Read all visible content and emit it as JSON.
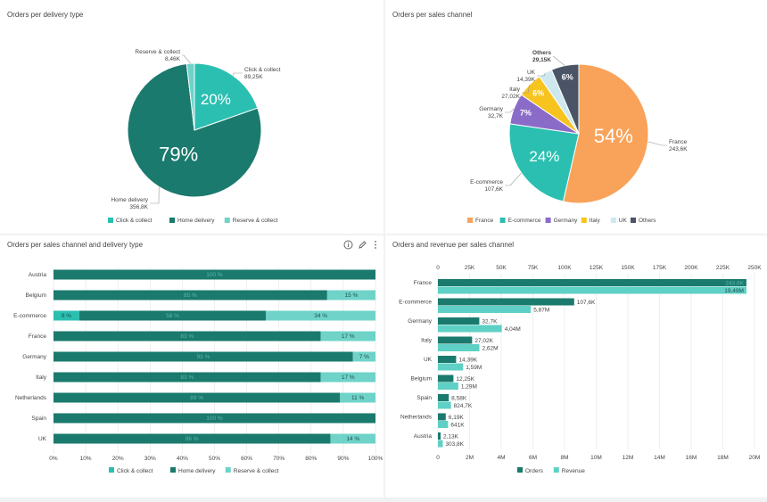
{
  "colors": {
    "home": "#1a7a6d",
    "click": "#2bbfb1",
    "reserve": "#6fd3c9",
    "orders": "#1a7a6d",
    "revenue": "#5fd0c5",
    "france": "#f9a25a",
    "ecommerce": "#2bbfb1",
    "germany": "#8a6cc8",
    "italy": "#f7c31f",
    "uk": "#cde8ee",
    "others": "#4a5466"
  },
  "toolbar": {
    "info_icon": "info-icon",
    "edit_icon": "pencil-icon",
    "more_icon": "more-vertical-icon"
  },
  "chart_data": [
    {
      "id": "delivery",
      "type": "pie",
      "title": "Orders per delivery type",
      "labels": [
        "Click & collect",
        "Home delivery",
        "Reserve & collect"
      ],
      "values": [
        89.25,
        356.8,
        8.46
      ],
      "value_labels": [
        "89,25K",
        "356,8K",
        "8,46K"
      ],
      "percent_labels": [
        "20%",
        "79%",
        ""
      ],
      "colors": [
        "#2bbfb1",
        "#1a7a6d",
        "#6fd3c9"
      ],
      "legend": "bottom"
    },
    {
      "id": "channel",
      "type": "pie",
      "title": "Orders per sales channel",
      "labels": [
        "France",
        "E-commerce",
        "Germany",
        "Italy",
        "UK",
        "Others"
      ],
      "values": [
        243.6,
        107.6,
        32.7,
        27.02,
        14.39,
        29.15
      ],
      "value_labels": [
        "243,6K",
        "107,6K",
        "32,7K",
        "27,02K",
        "14,39K",
        "29,15K"
      ],
      "percent_labels": [
        "54%",
        "24%",
        "7%",
        "6%",
        "",
        "6%"
      ],
      "colors": [
        "#f9a25a",
        "#2bbfb1",
        "#8a6cc8",
        "#f7c31f",
        "#cde8ee",
        "#4a5466"
      ],
      "legend": "bottom"
    },
    {
      "id": "stacked",
      "type": "bar",
      "orientation": "horizontal",
      "stacked": "percent",
      "title": "Orders per sales channel and delivery type",
      "categories": [
        "Austria",
        "Belgium",
        "E-commerce",
        "France",
        "Germany",
        "Italy",
        "Netherlands",
        "Spain",
        "UK"
      ],
      "series": [
        {
          "name": "Click & collect",
          "values": [
            0,
            0,
            8,
            0,
            0,
            0,
            0,
            0,
            0
          ],
          "labels": [
            "",
            "",
            "8 %",
            "",
            "",
            "",
            "",
            "",
            ""
          ]
        },
        {
          "name": "Home delivery",
          "values": [
            100,
            85,
            58,
            83,
            93,
            83,
            89,
            100,
            86
          ],
          "labels": [
            "100 %",
            "85 %",
            "58 %",
            "83 %",
            "93 %",
            "83 %",
            "89 %",
            "100 %",
            "86 %"
          ]
        },
        {
          "name": "Reserve & collect",
          "values": [
            0,
            15,
            34,
            17,
            7,
            17,
            11,
            0,
            14
          ],
          "labels": [
            "",
            "15 %",
            "34 %",
            "17 %",
            "7 %",
            "17 %",
            "11 %",
            "",
            "14 %"
          ]
        }
      ],
      "xticks": [
        "0%",
        "10%",
        "20%",
        "30%",
        "40%",
        "50%",
        "60%",
        "70%",
        "80%",
        "90%",
        "100%"
      ],
      "legend": "bottom"
    },
    {
      "id": "orev",
      "type": "bar",
      "orientation": "horizontal",
      "title": "Orders and revenue per sales channel",
      "categories": [
        "France",
        "E-commerce",
        "Germany",
        "Italy",
        "UK",
        "Belgium",
        "Spain",
        "Netherlands",
        "Austria"
      ],
      "series": [
        {
          "name": "Orders",
          "values": [
            243.6,
            107.6,
            32.7,
            27.02,
            14.39,
            12.25,
            8.58,
            6.19,
            2.13
          ],
          "labels": [
            "243,6K",
            "107,6K",
            "32,7K",
            "27,02K",
            "14,39K",
            "12,25K",
            "8,58K",
            "6,19K",
            "2,13K"
          ]
        },
        {
          "name": "Revenue",
          "values": [
            19.49,
            5.87,
            4.04,
            2.62,
            1.59,
            1.29,
            0.8247,
            0.641,
            0.3038
          ],
          "labels": [
            "19,49M",
            "5,87M",
            "4,04M",
            "2,62M",
            "1,59M",
            "1,29M",
            "824,7K",
            "641K",
            "303,8K"
          ]
        }
      ],
      "top_axis": {
        "range": [
          0,
          250
        ],
        "ticks": [
          "0",
          "25K",
          "50K",
          "75K",
          "100K",
          "125K",
          "150K",
          "175K",
          "200K",
          "225K",
          "250K"
        ]
      },
      "bottom_axis": {
        "range": [
          0,
          20
        ],
        "ticks": [
          "0",
          "2M",
          "4M",
          "6M",
          "8M",
          "10M",
          "12M",
          "14M",
          "16M",
          "18M",
          "20M"
        ]
      },
      "legend": "bottom"
    }
  ]
}
